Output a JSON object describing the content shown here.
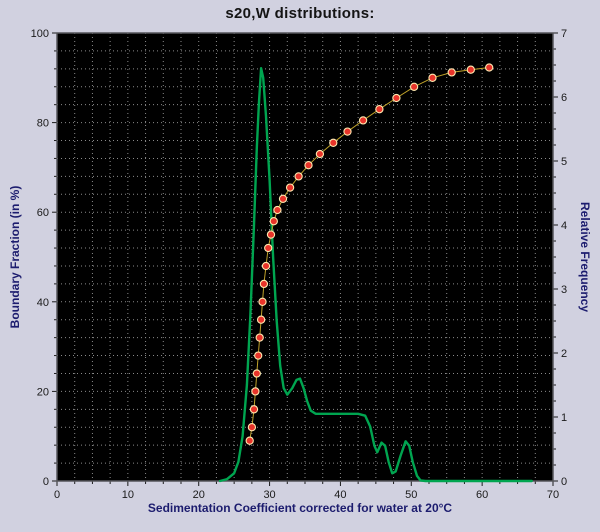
{
  "chart_data": {
    "type": "line",
    "title": "s20,W distributions:",
    "xlabel": "Sedimentation Coefficient corrected for water at 20°C",
    "ylabel_left": "Boundary Fraction (in %)",
    "ylabel_right": "Relative Frequency",
    "xlim": [
      0,
      70
    ],
    "ylim_left": [
      0,
      100
    ],
    "ylim_right": [
      0,
      7
    ],
    "x_ticks": [
      0,
      10,
      20,
      30,
      40,
      50,
      60,
      70
    ],
    "y_ticks_left": [
      0,
      20,
      40,
      60,
      80,
      100
    ],
    "y_ticks_right": [
      0,
      1,
      2,
      3,
      4,
      5,
      6,
      7
    ],
    "grid": {
      "x_step": 2.5,
      "y_step_left": 4
    },
    "colors": {
      "page_bg": "#d1d1e0",
      "plot_bg": "#000000",
      "grid": "#8a8a8a",
      "frame": "#55555a",
      "tick_text": "#1b1b1b",
      "title_text": "#141414",
      "axis_title_text": "#1c1c6e",
      "frequency_curve": "#00a550",
      "boundary_line": "#bfa22a",
      "marker_fill": "#e8342a",
      "marker_stroke": "#ffeab0"
    },
    "series": [
      {
        "name": "relative-frequency-curve",
        "axis": "right",
        "type": "line",
        "points": [
          [
            23,
            0
          ],
          [
            24,
            0.03
          ],
          [
            25,
            0.12
          ],
          [
            25.6,
            0.3
          ],
          [
            26.2,
            0.7
          ],
          [
            26.8,
            1.5
          ],
          [
            27.3,
            2.6
          ],
          [
            27.8,
            4.0
          ],
          [
            28.2,
            5.2
          ],
          [
            28.5,
            5.9
          ],
          [
            28.8,
            6.45
          ],
          [
            29.1,
            6.3
          ],
          [
            29.5,
            5.7
          ],
          [
            30,
            4.7
          ],
          [
            30.5,
            3.5
          ],
          [
            31,
            2.5
          ],
          [
            31.5,
            1.8
          ],
          [
            32,
            1.45
          ],
          [
            32.5,
            1.35
          ],
          [
            33.2,
            1.45
          ],
          [
            33.8,
            1.58
          ],
          [
            34.3,
            1.6
          ],
          [
            34.8,
            1.45
          ],
          [
            35.3,
            1.25
          ],
          [
            35.8,
            1.1
          ],
          [
            36.5,
            1.05
          ],
          [
            37.5,
            1.05
          ],
          [
            38.5,
            1.05
          ],
          [
            39.5,
            1.05
          ],
          [
            40.5,
            1.05
          ],
          [
            41.5,
            1.05
          ],
          [
            42.5,
            1.05
          ],
          [
            43.5,
            1.02
          ],
          [
            44.2,
            0.85
          ],
          [
            44.8,
            0.55
          ],
          [
            45.2,
            0.45
          ],
          [
            45.8,
            0.6
          ],
          [
            46.3,
            0.55
          ],
          [
            46.8,
            0.3
          ],
          [
            47.3,
            0.12
          ],
          [
            47.8,
            0.15
          ],
          [
            48.5,
            0.4
          ],
          [
            49.2,
            0.62
          ],
          [
            49.7,
            0.55
          ],
          [
            50.2,
            0.3
          ],
          [
            50.8,
            0.08
          ],
          [
            51.3,
            0.01
          ],
          [
            52,
            0
          ],
          [
            67,
            0
          ]
        ]
      },
      {
        "name": "boundary-fraction-points",
        "axis": "left",
        "type": "scatter-line",
        "points": [
          [
            27.2,
            9
          ],
          [
            27.5,
            12
          ],
          [
            27.8,
            16
          ],
          [
            28.0,
            20
          ],
          [
            28.2,
            24
          ],
          [
            28.4,
            28
          ],
          [
            28.6,
            32
          ],
          [
            28.8,
            36
          ],
          [
            29.0,
            40
          ],
          [
            29.2,
            44
          ],
          [
            29.5,
            48
          ],
          [
            29.8,
            52
          ],
          [
            30.2,
            55
          ],
          [
            30.6,
            58
          ],
          [
            31.1,
            60.5
          ],
          [
            31.9,
            63
          ],
          [
            32.9,
            65.5
          ],
          [
            34.1,
            68
          ],
          [
            35.5,
            70.5
          ],
          [
            37.1,
            73
          ],
          [
            39.0,
            75.5
          ],
          [
            41.0,
            78
          ],
          [
            43.2,
            80.5
          ],
          [
            45.5,
            83
          ],
          [
            47.9,
            85.5
          ],
          [
            50.4,
            88
          ],
          [
            53.0,
            90
          ],
          [
            55.7,
            91.2
          ],
          [
            58.4,
            91.8
          ],
          [
            61.0,
            92.3
          ]
        ]
      }
    ]
  }
}
